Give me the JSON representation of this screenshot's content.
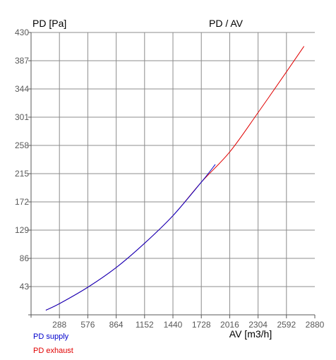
{
  "chart_data": {
    "type": "line",
    "title": "PD / AV",
    "ylabel": "PD [Pa]",
    "xlabel": "AV [m3/h]",
    "xlim": [
      0,
      2880
    ],
    "ylim": [
      0,
      430
    ],
    "x_ticks": [
      "288",
      "576",
      "864",
      "1152",
      "1440",
      "1728",
      "2016",
      "2304",
      "2592",
      "2880"
    ],
    "y_ticks": [
      "43",
      "86",
      "129",
      "172",
      "215",
      "258",
      "301",
      "344",
      "387",
      "430"
    ],
    "grid": true,
    "legend_position": "bottom-left",
    "series": [
      {
        "name": "PD supply",
        "color": "#0000cc",
        "x": [
          150,
          288,
          576,
          864,
          1152,
          1440,
          1728,
          1870
        ],
        "y": [
          7,
          17,
          42,
          72,
          109,
          151,
          202,
          229
        ]
      },
      {
        "name": "PD exhaust",
        "color": "#e00000",
        "x": [
          150,
          288,
          576,
          864,
          1152,
          1440,
          1728,
          2016,
          2304,
          2592,
          2770
        ],
        "y": [
          7,
          17,
          42,
          72,
          109,
          151,
          202,
          248,
          308,
          370,
          409
        ]
      }
    ]
  }
}
